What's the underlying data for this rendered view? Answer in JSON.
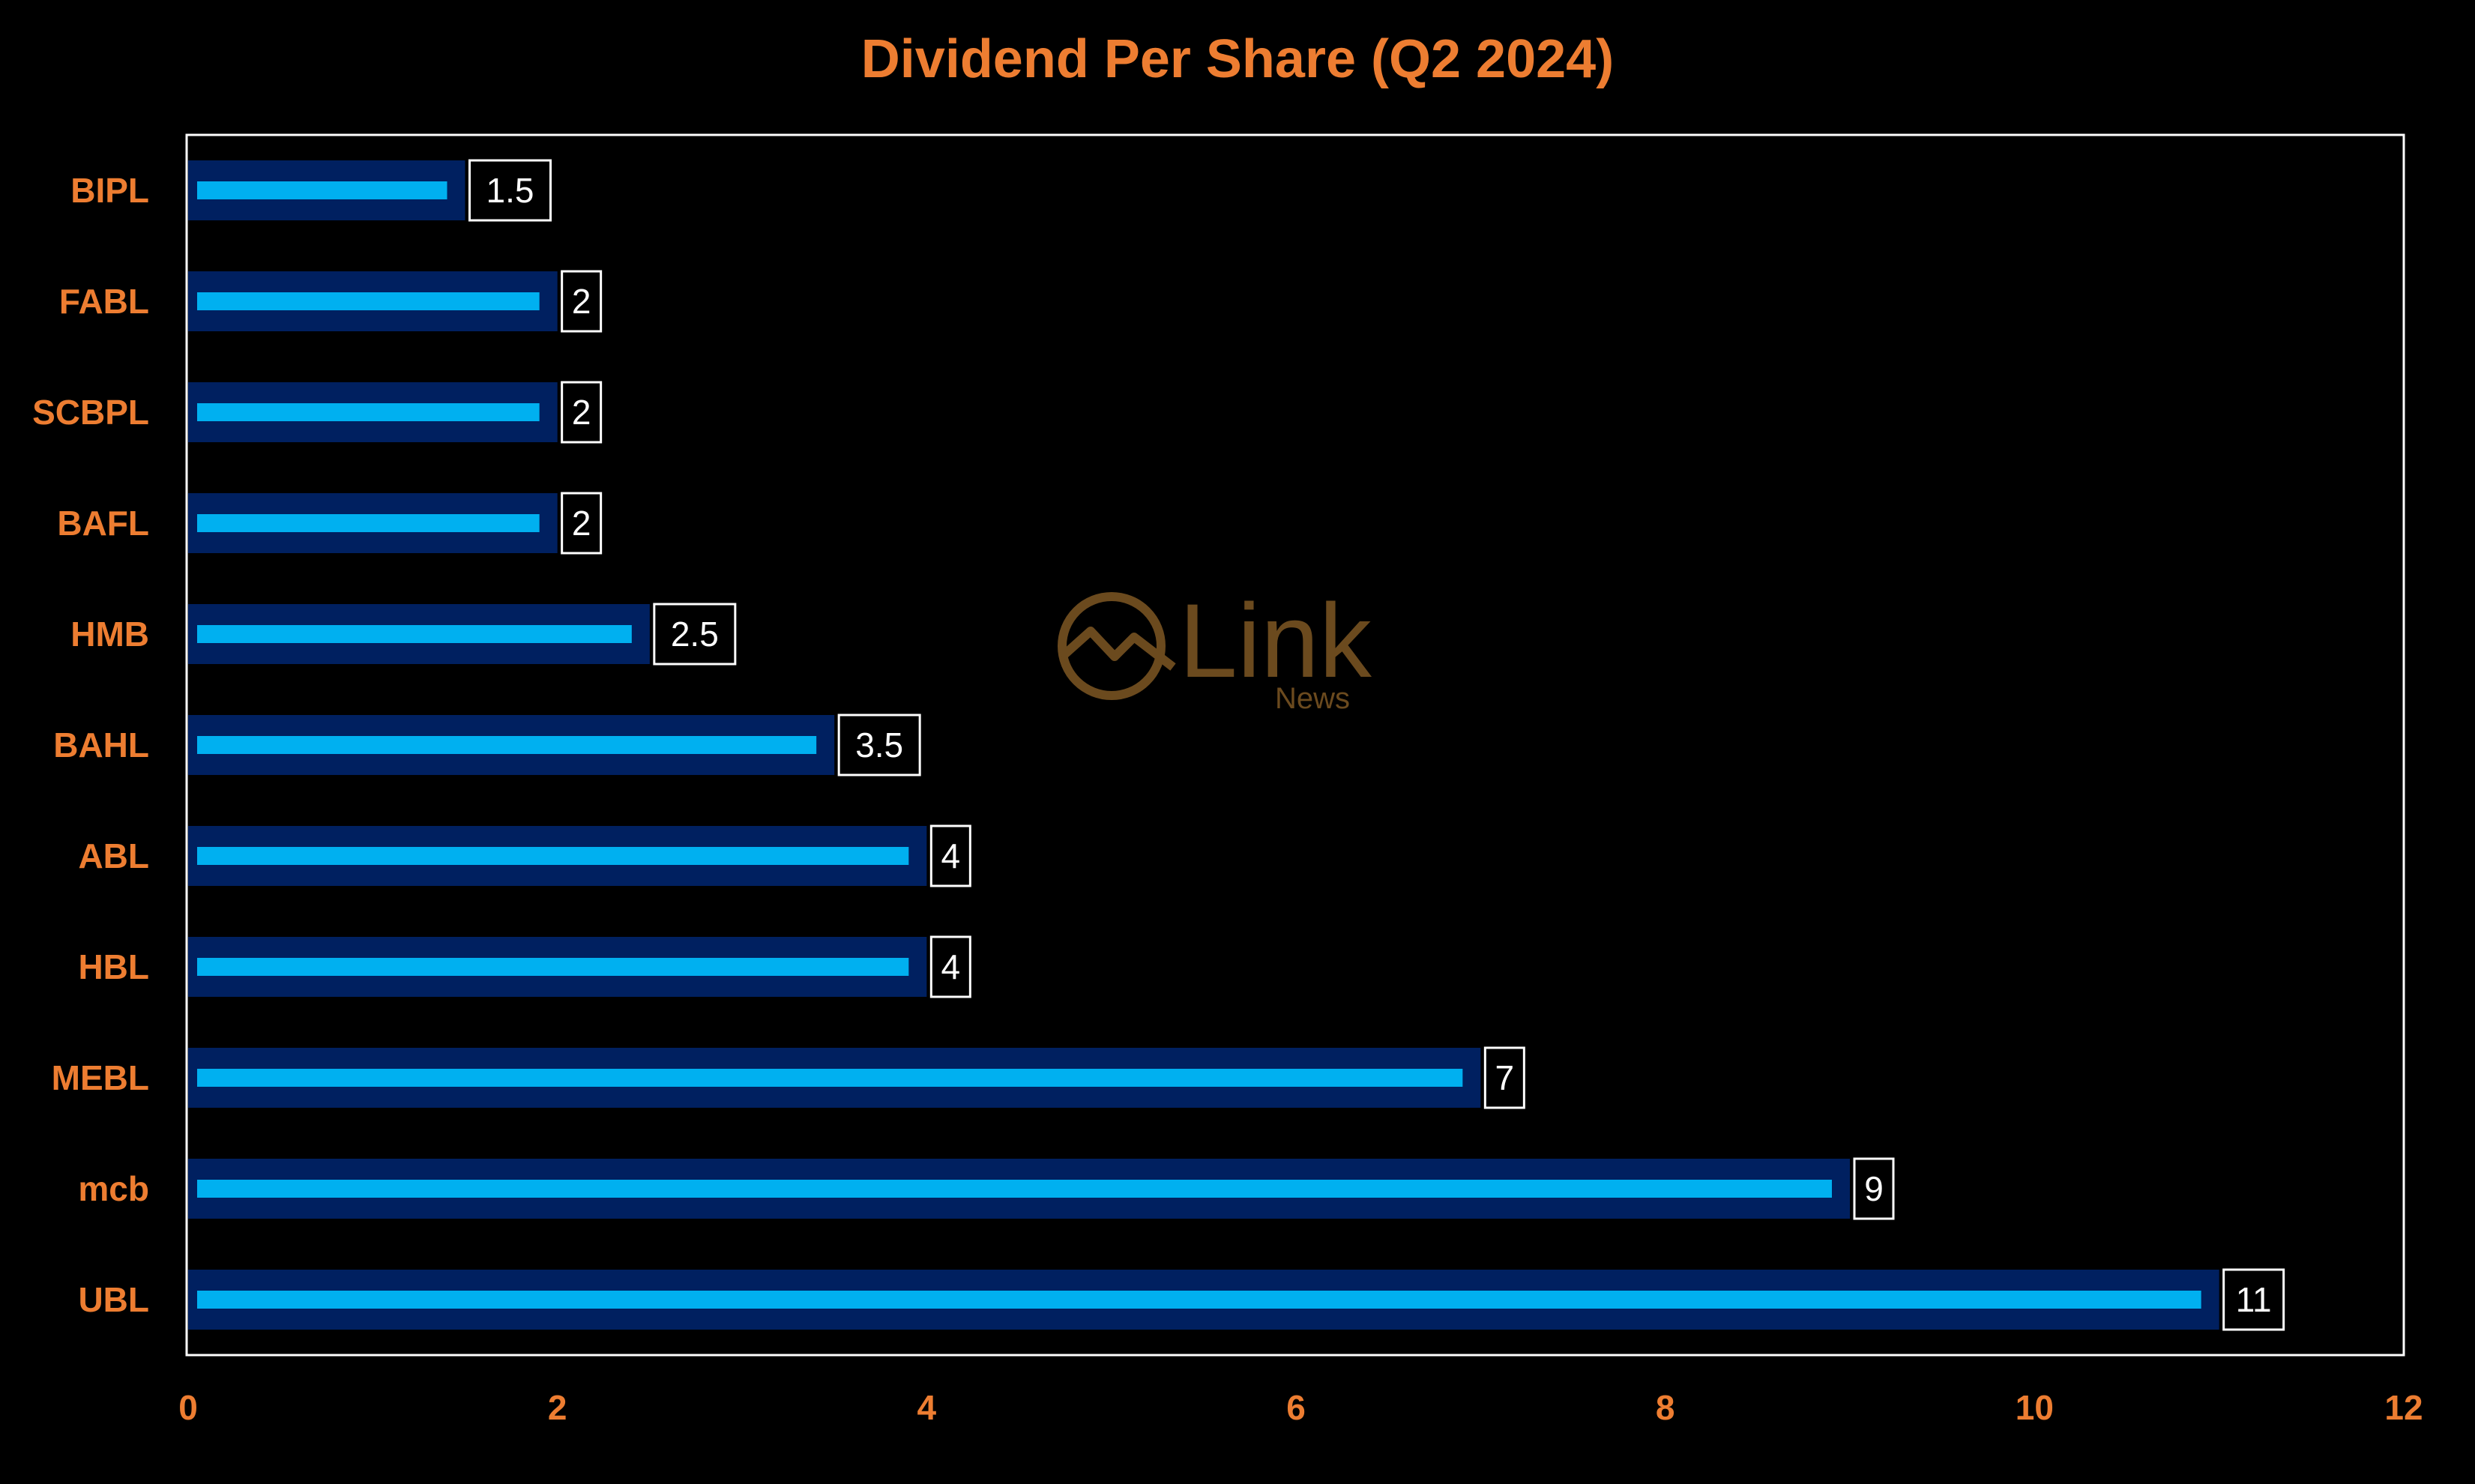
{
  "chart_data": {
    "type": "bar",
    "orientation": "horizontal",
    "title": "Dividend Per Share (Q2 2024)",
    "categories": [
      "BIPL",
      "FABL",
      "SCBPL",
      "BAFL",
      "HMB",
      "BAHL",
      "ABL",
      "HBL",
      "MEBL",
      "mcb",
      "UBL"
    ],
    "values": [
      1.5,
      2,
      2,
      2,
      2.5,
      3.5,
      4,
      4,
      7,
      9,
      11
    ],
    "data_labels": [
      "1.5",
      "2",
      "2",
      "2",
      "2.5",
      "3.5",
      "4",
      "4",
      "7",
      "9",
      "11"
    ],
    "xlim": [
      0,
      12
    ],
    "xticks": [
      "0",
      "2",
      "4",
      "6",
      "8",
      "10",
      "12"
    ],
    "grid": false,
    "legend": "none"
  },
  "watermark": {
    "brand": "Link",
    "sub": "News"
  },
  "colors": {
    "background": "#000000",
    "label_orange": "#ED7D31",
    "bar_outer": "#002060",
    "bar_inner": "#00B0F0",
    "frame": "#FFFFFF",
    "watermark": "#6b4a1e"
  }
}
